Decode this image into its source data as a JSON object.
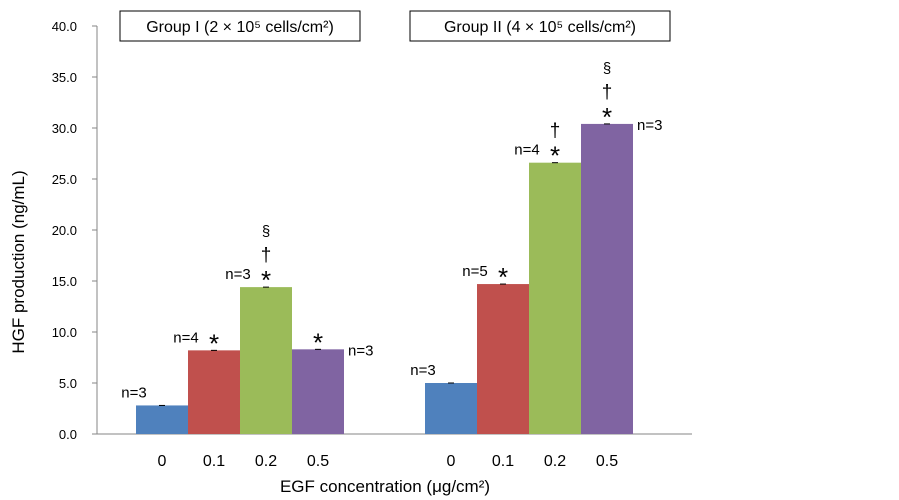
{
  "chart_data": {
    "type": "bar",
    "ylabel": "HGF production (ng/mL)",
    "xlabel": "EGF concentration (μg/cm²)",
    "ylim": [
      0,
      40
    ],
    "yticks": [
      "0.0",
      "5.0",
      "10.0",
      "15.0",
      "20.0",
      "25.0",
      "30.0",
      "35.0",
      "40.0"
    ],
    "grid": false,
    "colors": [
      "#4F81BD",
      "#C0504D",
      "#9BBB59",
      "#8064A2"
    ],
    "groups": [
      {
        "title": "Group I (2 × 10⁵ cells/cm²)",
        "bars": [
          {
            "category": "0",
            "value": 2.8,
            "n_label": "n=3",
            "n_pos": "above-left",
            "marks": []
          },
          {
            "category": "0.1",
            "value": 8.2,
            "n_label": "n=4",
            "n_pos": "above-left",
            "marks": [
              "*"
            ]
          },
          {
            "category": "0.2",
            "value": 14.4,
            "n_label": "n=3",
            "n_pos": "above-left",
            "marks": [
              "*",
              "†",
              "§"
            ]
          },
          {
            "category": "0.5",
            "value": 8.3,
            "n_label": "n=3",
            "n_pos": "right",
            "marks": [
              "*"
            ]
          }
        ]
      },
      {
        "title": "Group II (4 × 10⁵ cells/cm²)",
        "bars": [
          {
            "category": "0",
            "value": 5.0,
            "n_label": "n=3",
            "n_pos": "above-left",
            "marks": []
          },
          {
            "category": "0.1",
            "value": 14.7,
            "n_label": "n=5",
            "n_pos": "above-left",
            "marks": [
              "*"
            ]
          },
          {
            "category": "0.2",
            "value": 26.6,
            "n_label": "n=4",
            "n_pos": "above-left",
            "marks": [
              "*",
              "†"
            ]
          },
          {
            "category": "0.5",
            "value": 30.4,
            "n_label": "n=3",
            "n_pos": "right",
            "marks": [
              "*",
              "†",
              "§"
            ]
          }
        ]
      }
    ]
  }
}
